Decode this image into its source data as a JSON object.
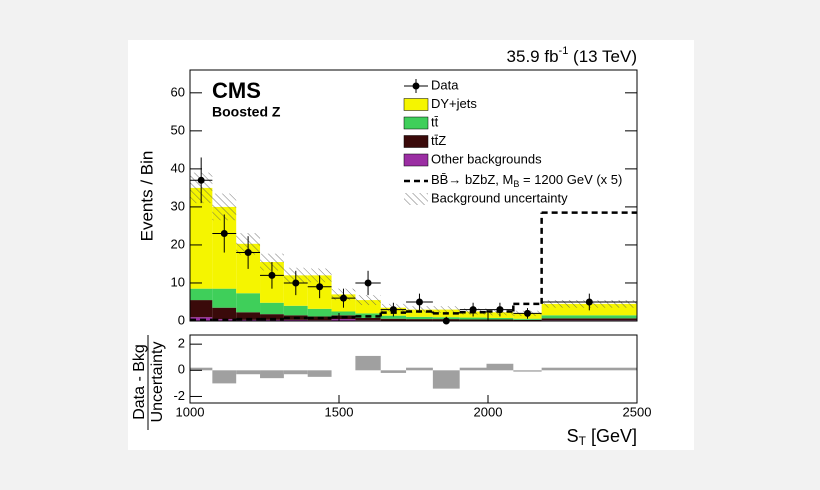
{
  "chart_data": {
    "type": "histogram",
    "title": {
      "lumi": "35.9 fb",
      "lumi_sup": "-1",
      "energy": "(13 TeV)"
    },
    "experiment": "CMS",
    "subtitle": "Boosted Z",
    "ylabel": "Events / Bin",
    "xlabel": {
      "main": "S",
      "sub": "T",
      "unit": "[GeV]"
    },
    "bins": [
      1000,
      1075,
      1155,
      1235,
      1315,
      1395,
      1475,
      1555,
      1640,
      1725,
      1815,
      1905,
      1995,
      2085,
      2180,
      2500
    ],
    "xlim": [
      1000,
      2500
    ],
    "xticks": [
      1000,
      1500,
      2000,
      2500
    ],
    "ylim": [
      0,
      66
    ],
    "yticks": [
      0,
      10,
      20,
      30,
      40,
      50,
      60
    ],
    "series": [
      {
        "name": "Other backgrounds",
        "color": "#9b2ea3",
        "values": [
          1,
          0.5,
          0.3,
          0.3,
          0.3,
          0.2,
          0.5,
          0.2,
          0.1,
          0.1,
          0.1,
          0.1,
          0.1,
          0.1,
          0.2
        ]
      },
      {
        "name": "tt̄Z",
        "color": "#3a0a0a",
        "values": [
          4.5,
          3,
          2,
          1.5,
          1.2,
          1,
          1,
          0.6,
          0.5,
          0.4,
          0.4,
          0.3,
          0.3,
          0.2,
          0.5
        ]
      },
      {
        "name": "tt̄",
        "color": "#3fcf5a",
        "values": [
          3,
          5,
          5,
          3,
          2.5,
          2,
          1,
          1.2,
          0.8,
          0.6,
          0.5,
          0.5,
          0.4,
          0.3,
          0.8
        ]
      },
      {
        "name": "DY+jets",
        "color": "#f5f500",
        "values": [
          26.5,
          21.5,
          13,
          10.7,
          8,
          8.8,
          4.5,
          3.5,
          2.1,
          1.9,
          2,
          1.6,
          1.5,
          1.4,
          3
        ]
      }
    ],
    "uncertainty": {
      "name": "Background uncertainty",
      "values": [
        4,
        3.5,
        2.8,
        2.2,
        2,
        1.8,
        1.5,
        1.3,
        1,
        0.9,
        0.9,
        0.8,
        0.8,
        0.7,
        1
      ]
    },
    "signal": {
      "name_parts": [
        "BB̄→ bZbZ, M",
        "B",
        " = 1200 GeV (x 5)"
      ],
      "values": [
        0.3,
        0.3,
        0.5,
        0.5,
        0.8,
        0.8,
        1,
        1.2,
        2.2,
        2.5,
        2,
        2.3,
        2.5,
        4.5,
        28.5
      ]
    },
    "data": {
      "name": "Data",
      "values": [
        37,
        23,
        18,
        12,
        10,
        9,
        6,
        10,
        3,
        5,
        0,
        3,
        3,
        2,
        5
      ],
      "errors": [
        6,
        5,
        4.3,
        3.5,
        3.2,
        3,
        2.5,
        3.2,
        1.8,
        2.2,
        1.1,
        1.8,
        1.8,
        1.4,
        2.2
      ]
    },
    "ratio": {
      "ylabel_lines": [
        "Data - Bkg",
        "Uncertainty"
      ],
      "color": "#a0a0a0",
      "values": [
        0.2,
        -1,
        -0.3,
        -0.6,
        -0.3,
        -0.5,
        0,
        1.1,
        -0.2,
        0.2,
        -1.4,
        0.2,
        0.5,
        -0.1,
        0.2
      ],
      "ylim": [
        -2.5,
        2.7
      ],
      "yticks": [
        -2,
        0,
        2
      ]
    }
  }
}
